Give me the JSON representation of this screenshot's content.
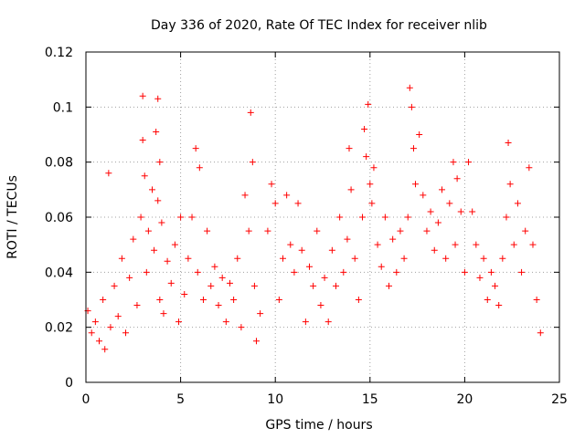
{
  "chart_data": {
    "type": "scatter",
    "title": "Day 336 of 2020, Rate Of TEC Index for receiver nlib",
    "xlabel": "GPS time / hours",
    "ylabel": "ROTI / TECUs",
    "xlim": [
      0,
      25
    ],
    "ylim": [
      0,
      0.12
    ],
    "xticks": [
      0,
      5,
      10,
      15,
      20,
      25
    ],
    "yticks": [
      0,
      0.02,
      0.04,
      0.06,
      0.08,
      0.1,
      0.12
    ],
    "xtick_labels": [
      "0",
      "5",
      "10",
      "15",
      "20",
      "25"
    ],
    "ytick_labels": [
      "0",
      "0.02",
      "0.04",
      "0.06",
      "0.08",
      "0.1",
      "0.12"
    ],
    "grid": true,
    "marker": "+",
    "color": "#ff0000",
    "series": [
      {
        "x": [
          0.1,
          0.3,
          0.5,
          0.7,
          0.9,
          1.0,
          1.2,
          1.3,
          1.5,
          1.7,
          1.9,
          2.1,
          2.3,
          2.5,
          2.7,
          2.9,
          3.0,
          3.0,
          3.1,
          3.2,
          3.3,
          3.5,
          3.6,
          3.7,
          3.8,
          3.8,
          3.9,
          3.9,
          4.0,
          4.1,
          4.3,
          4.5,
          4.7,
          4.9,
          5.0,
          5.2,
          5.4,
          5.6,
          5.8,
          5.9,
          6.0,
          6.2,
          6.4,
          6.6,
          6.8,
          7.0,
          7.2,
          7.4,
          7.6,
          7.8,
          8.0,
          8.2,
          8.4,
          8.6,
          8.7,
          8.8,
          8.9,
          9.0,
          9.2,
          9.6,
          9.8,
          10.0,
          10.2,
          10.4,
          10.6,
          10.8,
          11.0,
          11.2,
          11.4,
          11.6,
          11.8,
          12.0,
          12.2,
          12.4,
          12.6,
          12.8,
          13.0,
          13.2,
          13.4,
          13.6,
          13.8,
          13.9,
          14.0,
          14.2,
          14.4,
          14.6,
          14.7,
          14.8,
          14.9,
          15.0,
          15.1,
          15.2,
          15.4,
          15.6,
          15.8,
          16.0,
          16.2,
          16.4,
          16.6,
          16.8,
          17.0,
          17.1,
          17.2,
          17.3,
          17.4,
          17.6,
          17.8,
          18.0,
          18.2,
          18.4,
          18.6,
          18.8,
          19.0,
          19.2,
          19.4,
          19.5,
          19.6,
          19.8,
          20.0,
          20.2,
          20.4,
          20.6,
          20.8,
          21.0,
          21.2,
          21.4,
          21.6,
          21.8,
          22.0,
          22.2,
          22.3,
          22.4,
          22.6,
          22.8,
          23.0,
          23.2,
          23.4,
          23.6,
          23.8,
          24.0
        ],
        "y": [
          0.026,
          0.018,
          0.022,
          0.015,
          0.03,
          0.012,
          0.076,
          0.02,
          0.035,
          0.024,
          0.045,
          0.018,
          0.038,
          0.052,
          0.028,
          0.06,
          0.104,
          0.088,
          0.075,
          0.04,
          0.055,
          0.07,
          0.048,
          0.091,
          0.103,
          0.066,
          0.03,
          0.08,
          0.058,
          0.025,
          0.044,
          0.036,
          0.05,
          0.022,
          0.06,
          0.032,
          0.045,
          0.06,
          0.085,
          0.04,
          0.078,
          0.03,
          0.055,
          0.035,
          0.042,
          0.028,
          0.038,
          0.022,
          0.036,
          0.03,
          0.045,
          0.02,
          0.068,
          0.055,
          0.098,
          0.08,
          0.035,
          0.015,
          0.025,
          0.055,
          0.072,
          0.065,
          0.03,
          0.045,
          0.068,
          0.05,
          0.04,
          0.065,
          0.048,
          0.022,
          0.042,
          0.035,
          0.055,
          0.028,
          0.038,
          0.022,
          0.048,
          0.035,
          0.06,
          0.04,
          0.052,
          0.085,
          0.07,
          0.045,
          0.03,
          0.06,
          0.092,
          0.082,
          0.101,
          0.072,
          0.065,
          0.078,
          0.05,
          0.042,
          0.06,
          0.035,
          0.052,
          0.04,
          0.055,
          0.045,
          0.06,
          0.107,
          0.1,
          0.085,
          0.072,
          0.09,
          0.068,
          0.055,
          0.062,
          0.048,
          0.058,
          0.07,
          0.045,
          0.065,
          0.08,
          0.05,
          0.074,
          0.062,
          0.04,
          0.08,
          0.062,
          0.05,
          0.038,
          0.045,
          0.03,
          0.04,
          0.035,
          0.028,
          0.045,
          0.06,
          0.087,
          0.072,
          0.05,
          0.065,
          0.04,
          0.055,
          0.078,
          0.05,
          0.03,
          0.018
        ]
      }
    ]
  }
}
